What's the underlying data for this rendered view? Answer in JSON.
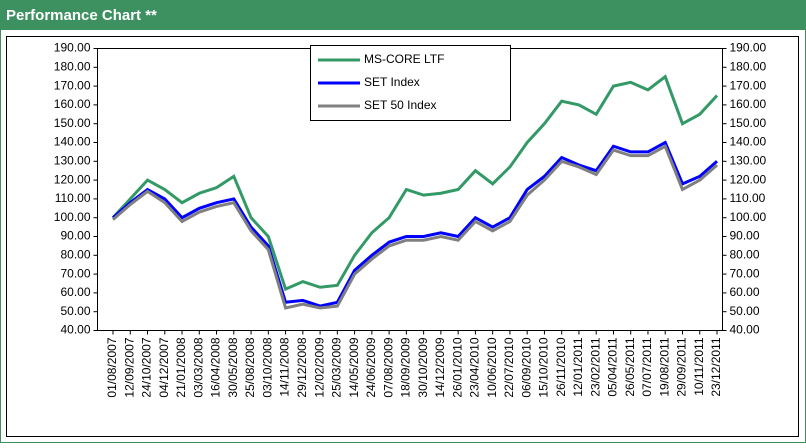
{
  "header": {
    "title": "Performance Chart **"
  },
  "chart_data": {
    "type": "line",
    "categories": [
      "01/08/2007",
      "12/09/2007",
      "24/10/2007",
      "04/12/2007",
      "21/01/2008",
      "03/03/2008",
      "16/04/2008",
      "30/05/2008",
      "25/08/2008",
      "03/10/2008",
      "14/11/2008",
      "29/12/2008",
      "12/02/2009",
      "25/03/2009",
      "14/05/2009",
      "24/06/2009",
      "07/08/2009",
      "18/09/2009",
      "30/10/2009",
      "14/12/2009",
      "26/01/2010",
      "23/04/2010",
      "10/06/2010",
      "22/07/2010",
      "06/09/2010",
      "15/10/2010",
      "26/11/2010",
      "12/01/2011",
      "23/02/2011",
      "05/04/2011",
      "26/05/2011",
      "07/07/2011",
      "19/08/2011",
      "29/09/2011",
      "10/11/2011",
      "23/12/2011"
    ],
    "series": [
      {
        "name": "MS-CORE LTF",
        "color": "#339966",
        "values": [
          100,
          110,
          120,
          115,
          108,
          113,
          116,
          122,
          100,
          90,
          62,
          66,
          63,
          64,
          80,
          92,
          100,
          115,
          112,
          113,
          115,
          125,
          118,
          127,
          140,
          150,
          162,
          160,
          155,
          170,
          172,
          168,
          175,
          150,
          155,
          165
        ]
      },
      {
        "name": "SET Index",
        "color": "#0000ff",
        "values": [
          100,
          108,
          115,
          110,
          100,
          105,
          108,
          110,
          95,
          85,
          55,
          56,
          53,
          55,
          72,
          80,
          87,
          90,
          90,
          92,
          90,
          100,
          95,
          100,
          115,
          122,
          132,
          128,
          125,
          138,
          135,
          135,
          140,
          118,
          122,
          130
        ]
      },
      {
        "name": "SET 50 Index",
        "color": "#808080",
        "values": [
          99,
          107,
          114,
          108,
          98,
          103,
          106,
          108,
          93,
          83,
          52,
          54,
          52,
          53,
          70,
          78,
          85,
          88,
          88,
          90,
          88,
          98,
          93,
          98,
          112,
          120,
          130,
          127,
          123,
          136,
          133,
          133,
          138,
          115,
          120,
          128
        ]
      }
    ],
    "ylim": [
      40,
      190
    ],
    "yticks": [
      {
        "value": 40,
        "label": "40.00"
      },
      {
        "value": 50,
        "label": "50.00"
      },
      {
        "value": 60,
        "label": "60.00"
      },
      {
        "value": 70,
        "label": "70.00"
      },
      {
        "value": 80,
        "label": "80.00"
      },
      {
        "value": 90,
        "label": "90.00"
      },
      {
        "value": 100,
        "label": "100.00"
      },
      {
        "value": 110,
        "label": "110.00"
      },
      {
        "value": 120,
        "label": "120.00"
      },
      {
        "value": 130,
        "label": "130.00"
      },
      {
        "value": 140,
        "label": "140.00"
      },
      {
        "value": 150,
        "label": "150.00"
      },
      {
        "value": 160,
        "label": "160.00"
      },
      {
        "value": 170,
        "label": "170.00"
      },
      {
        "value": 180,
        "label": "180.00"
      },
      {
        "value": 190,
        "label": "190.00"
      }
    ],
    "grid": false
  }
}
